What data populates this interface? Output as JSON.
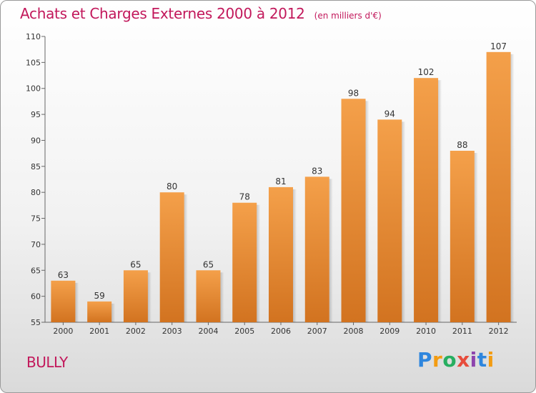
{
  "header": {
    "title": "Achats et Charges Externes 2000 à 2012",
    "subtitle": "(en milliers d'€)"
  },
  "commune": "BULLY",
  "brand": {
    "letters": [
      "P",
      "r",
      "o",
      "x",
      "i",
      "t",
      "i"
    ],
    "colors": [
      "#2e86de",
      "#f39c12",
      "#27ae60",
      "#e74c3c",
      "#8e44ad",
      "#2e86de",
      "#f39c12"
    ]
  },
  "chart_data": {
    "type": "bar",
    "categories": [
      "2000",
      "2001",
      "2002",
      "2003",
      "2004",
      "2005",
      "2006",
      "2007",
      "2008",
      "2009",
      "2010",
      "2011",
      "2012"
    ],
    "values": [
      63,
      59,
      65,
      80,
      65,
      78,
      81,
      83,
      98,
      94,
      102,
      88,
      107
    ],
    "ylim": [
      55,
      110
    ],
    "yticks": [
      55,
      60,
      65,
      70,
      75,
      80,
      85,
      90,
      95,
      100,
      105,
      110
    ],
    "bar_color": "#f4a04a",
    "bar_color_dark": "#d27320",
    "grid": false
  }
}
